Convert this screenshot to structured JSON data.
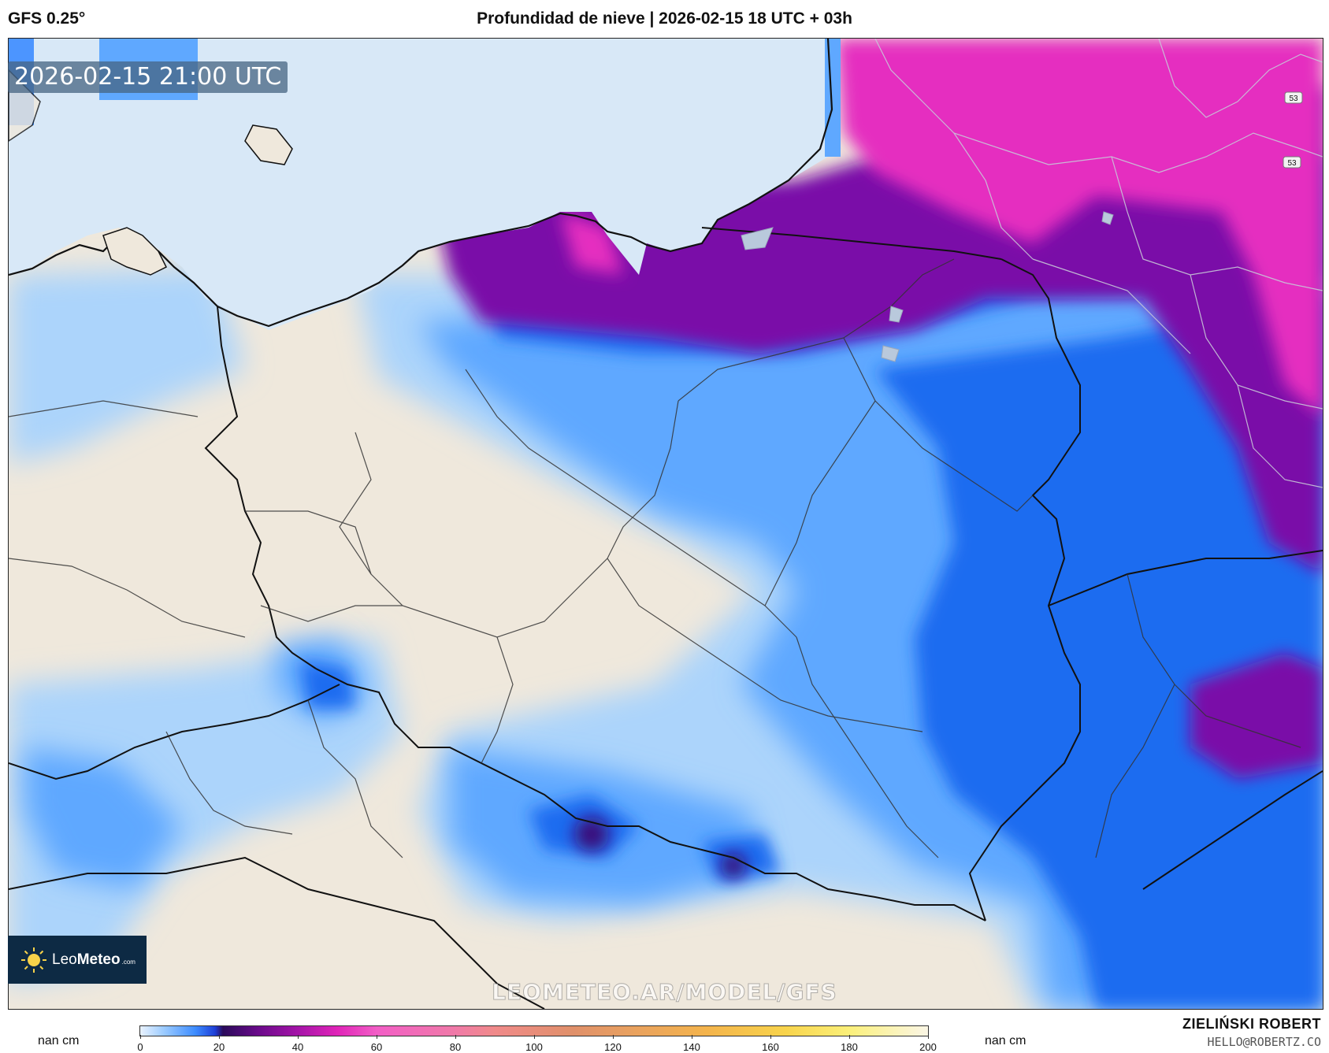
{
  "header": {
    "model": "GFS 0.25°",
    "title": "Profundidad de nieve | 2026-02-15 18 UTC + 03h"
  },
  "map": {
    "valid_time": "2026-02-15 21:00 UTC",
    "watermark": "LEOMETEO.AR/MODEL/GFS",
    "road_badges": [
      "53",
      "53"
    ],
    "colors": {
      "land": "#efe8dc",
      "sea": "#d8e8f7",
      "snow_light": "#acd4fb",
      "snow_mid": "#5fa8ff",
      "snow_deep": "#1f6cf0",
      "snow_very_deep": "#7a0fa8",
      "snow_max": "#e52dc0"
    }
  },
  "logo": {
    "brand_light": "Leo",
    "brand_bold": "Meteo",
    "brand_suffix": ".com"
  },
  "colorbar": {
    "unit_left": "nan cm",
    "unit_right": "nan cm",
    "ticks": [
      "0",
      "20",
      "40",
      "60",
      "80",
      "100",
      "120",
      "140",
      "160",
      "180",
      "200"
    ]
  },
  "author": {
    "name": "ZIELIŃSKI ROBERT",
    "email": "HELLO@ROBERTZ.CO"
  }
}
